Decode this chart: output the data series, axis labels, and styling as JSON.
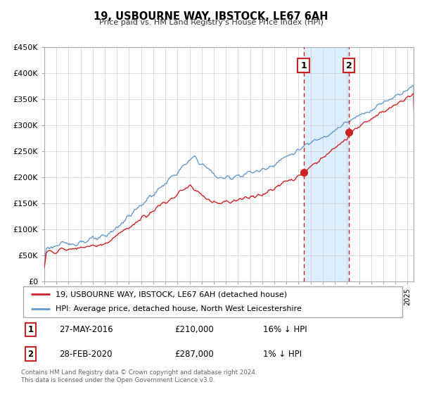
{
  "title": "19, USBOURNE WAY, IBSTOCK, LE67 6AH",
  "subtitle": "Price paid vs. HM Land Registry's House Price Index (HPI)",
  "legend_line1": "19, USBOURNE WAY, IBSTOCK, LE67 6AH (detached house)",
  "legend_line2": "HPI: Average price, detached house, North West Leicestershire",
  "transaction1_label": "1",
  "transaction1_date": "27-MAY-2016",
  "transaction1_price": "£210,000",
  "transaction1_hpi": "16% ↓ HPI",
  "transaction1_x": 2016.41,
  "transaction1_y": 210000,
  "transaction2_label": "2",
  "transaction2_date": "28-FEB-2020",
  "transaction2_price": "£287,000",
  "transaction2_hpi": "1% ↓ HPI",
  "transaction2_x": 2020.16,
  "transaction2_y": 287000,
  "hpi_color": "#6699cc",
  "price_color": "#cc2222",
  "marker_color": "#cc2222",
  "vline_color": "#cc2222",
  "shade_color": "#ddeeff",
  "ylim": [
    0,
    450000
  ],
  "xlim_start": 1995.0,
  "xlim_end": 2025.5,
  "yticks": [
    0,
    50000,
    100000,
    150000,
    200000,
    250000,
    300000,
    350000,
    400000,
    450000
  ],
  "footer": "Contains HM Land Registry data © Crown copyright and database right 2024.\nThis data is licensed under the Open Government Licence v3.0."
}
